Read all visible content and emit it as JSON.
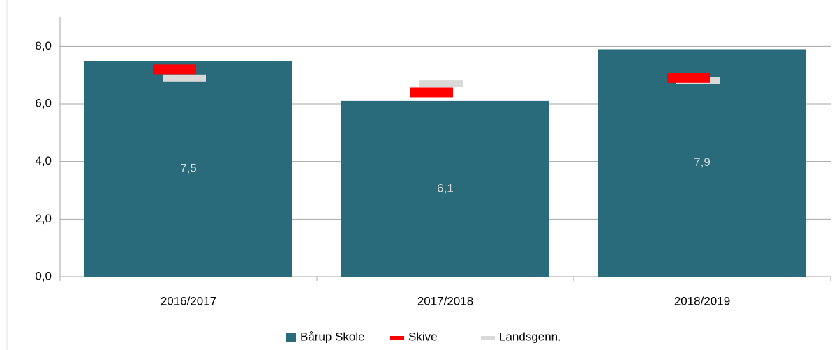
{
  "chart_data": {
    "type": "bar",
    "categories": [
      "2016/2017",
      "2017/2018",
      "2018/2019"
    ],
    "series": [
      {
        "name": "Bårup Skole",
        "color": "#296b7a",
        "values": [
          7.5,
          6.1,
          7.9
        ],
        "value_labels": [
          "7,5",
          "6,1",
          "7,9"
        ]
      },
      {
        "name": "Skive",
        "color": "#ff0000",
        "values": [
          7.2,
          6.4,
          6.9
        ]
      },
      {
        "name": "Landsgenn.",
        "color": "#d9d9d9",
        "values": [
          6.9,
          6.7,
          6.8
        ]
      }
    ],
    "ylim": [
      0,
      9
    ],
    "yticks": [
      {
        "value": 0,
        "label": "0,0"
      },
      {
        "value": 2,
        "label": "2,0"
      },
      {
        "value": 4,
        "label": "4,0"
      },
      {
        "value": 6,
        "label": "6,0"
      },
      {
        "value": 8,
        "label": "8,0"
      }
    ],
    "grid": true,
    "legend": "bottom"
  }
}
